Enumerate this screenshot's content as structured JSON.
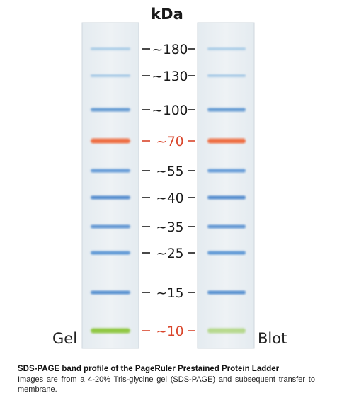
{
  "unit_label": "kDa",
  "lanes": [
    {
      "name": "Gel",
      "label": "Gel"
    },
    {
      "name": "Blot",
      "label": "Blot"
    }
  ],
  "markers": [
    {
      "label": "~180",
      "kda": 180,
      "color": "#1a1a1a",
      "band_color": "#86b9e0"
    },
    {
      "label": "~130",
      "kda": 130,
      "color": "#1a1a1a",
      "band_color": "#7fb2de"
    },
    {
      "label": "~100",
      "kda": 100,
      "color": "#1a1a1a",
      "band_color": "#5f97d2"
    },
    {
      "label": "~70",
      "kda": 70,
      "color": "#d9452b",
      "band_color": "#ef6a3d"
    },
    {
      "label": "~55",
      "kda": 55,
      "color": "#1a1a1a",
      "band_color": "#5f97d6"
    },
    {
      "label": "~40",
      "kda": 40,
      "color": "#1a1a1a",
      "band_color": "#4c86cc"
    },
    {
      "label": "~35",
      "kda": 35,
      "color": "#1a1a1a",
      "band_color": "#5a92d2"
    },
    {
      "label": "~25",
      "kda": 25,
      "color": "#1a1a1a",
      "band_color": "#5a95d4"
    },
    {
      "label": "~15",
      "kda": 15,
      "color": "#1a1a1a",
      "band_color": "#4f8bcf"
    },
    {
      "label": "~10",
      "kda": 10,
      "color": "#d9452b",
      "band_color": "#8cc63a"
    }
  ],
  "caption": {
    "title": "SDS-PAGE band profile of the PageRuler Prestained Protein Ladder",
    "body": "Images are from a 4-20% Tris-glycine gel (SDS-PAGE) and subsequent transfer to membrane."
  }
}
